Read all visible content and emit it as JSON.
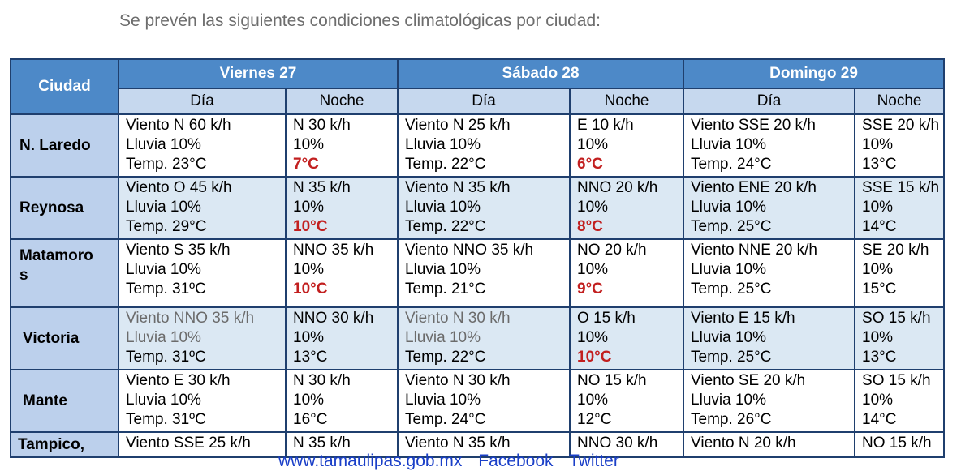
{
  "intro": "Se prevén las siguientes condiciones climatológicas por ciudad:",
  "header": {
    "city": "Ciudad",
    "days": [
      "Viernes 27",
      "Sábado 28",
      "Domingo 29"
    ],
    "day_label": "Día",
    "night_label": "Noche"
  },
  "rows": [
    {
      "city": "N. Laredo",
      "cells": [
        [
          "Viento  N 60  k/h",
          "Lluvia  10%",
          "Temp.  23°C"
        ],
        [
          "N 30 k/h",
          "10%",
          "7°C"
        ],
        [
          "Viento  N 25  k/h",
          "Lluvia  10%",
          "Temp.  22°C"
        ],
        [
          "E 10 k/h",
          "10%",
          "6°C"
        ],
        [
          "Viento  SSE 20 k/h",
          "Lluvia  10%",
          "Temp.  24°C"
        ],
        [
          "SSE 20 k/h",
          "10%",
          "13°C"
        ]
      ]
    },
    {
      "city": "Reynosa",
      "cells": [
        [
          "Viento  O 45 k/h",
          "Lluvia  10%",
          "Temp.  29°C"
        ],
        [
          "N 35 k/h",
          "10%",
          "10°C"
        ],
        [
          "Viento  N 35 k/h",
          "Lluvia  10%",
          "Temp.  22°C"
        ],
        [
          "NNO 20 k/h",
          "10%",
          "8°C"
        ],
        [
          "Viento  ENE 20 k/h",
          "Lluvia  10%",
          "Temp.  25°C"
        ],
        [
          "SSE 15 k/h",
          "10%",
          "14°C"
        ]
      ]
    },
    {
      "city_line1": "Matamoro",
      "city_line2": "s",
      "cells": [
        [
          "Viento  S 35 k/h",
          "Lluvia  10%",
          "Temp.  31ºC"
        ],
        [
          "NNO 35 k/h",
          "10%",
          "10°C"
        ],
        [
          "Viento  NNO 35 k/h",
          "Lluvia  10%",
          "Temp.  21°C"
        ],
        [
          "NO 20 k/h",
          "10%",
          "9°C"
        ],
        [
          "Viento  NNE 20 k/h",
          "Lluvia  10%",
          "Temp.  25°C"
        ],
        [
          "SE 20 k/h",
          "10%",
          "15°C"
        ]
      ]
    },
    {
      "city": "Victoria",
      "cells": [
        [
          "Viento  NNO 35 k/h",
          "Lluvia  10%",
          "Temp.  31ºC"
        ],
        [
          "NNO 30 k/h",
          "10%",
          "13°C"
        ],
        [
          "Viento  N 30 k/h",
          "Lluvia  10%",
          "Temp.  22°C"
        ],
        [
          "O 15 k/h",
          "10%",
          "10°C"
        ],
        [
          "Viento  E 15 k/h",
          "Lluvia  10%",
          "Temp.  25°C"
        ],
        [
          "SO 15 k/h",
          "10%",
          "13°C"
        ]
      ]
    },
    {
      "city": "Mante",
      "cells": [
        [
          "Viento  E 30  k/h",
          "Lluvia  10%",
          "Temp.  31ºC"
        ],
        [
          "N 30 k/h",
          "10%",
          "16°C"
        ],
        [
          "Viento  N 30 k/h",
          "Lluvia  10%",
          "Temp.  24°C"
        ],
        [
          "NO 15 k/h",
          "10%",
          "12°C"
        ],
        [
          "Viento  SE 20 k/h",
          "Lluvia  10%",
          "Temp.  26°C"
        ],
        [
          "SO 15 k/h",
          "10%",
          "14°C"
        ]
      ]
    },
    {
      "city": "Tampico,",
      "cells": [
        [
          "Viento  SSE 25 k/h"
        ],
        [
          "N 35 k/h"
        ],
        [
          "Viento  N 35 k/h"
        ],
        [
          "NNO 30 k/h"
        ],
        [
          "Viento  N 20 k/h"
        ],
        [
          "NO 15 k/h"
        ]
      ]
    }
  ],
  "footer": {
    "site": "www.tamaulipas.gob.mx",
    "facebook": "Facebook",
    "twitter": "Twitter"
  },
  "colors": {
    "header_bg": "#4d89c8",
    "subheader_bg": "#c6d8ee",
    "alt_row_bg": "#dbe8f3",
    "city_bg": "#bcd0ec",
    "low_temp": "#c21f1f",
    "link": "#1a3fc8"
  }
}
